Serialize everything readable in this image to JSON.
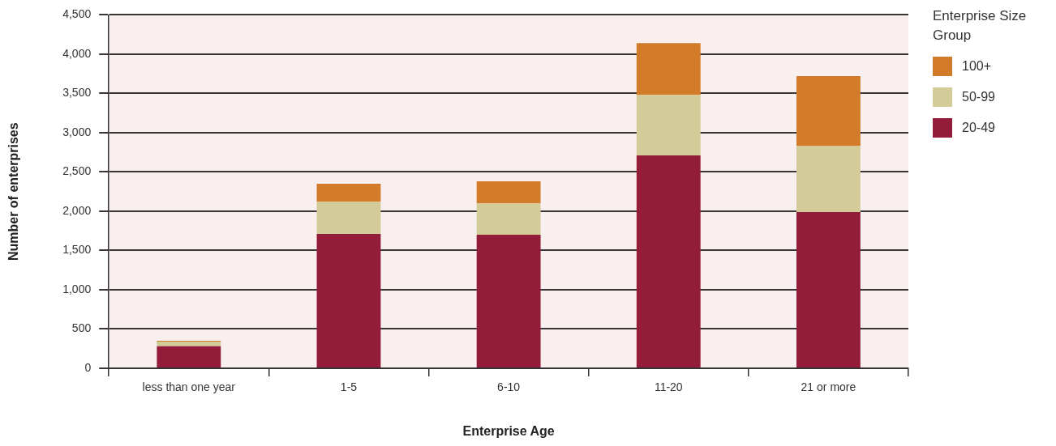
{
  "chart_data": {
    "type": "bar",
    "stacked": true,
    "xlabel": "Enterprise Age",
    "ylabel": "Number of enterprises",
    "legend_title": "Enterprise Size Group",
    "legend": "top right",
    "grid": "y",
    "categories": [
      "less than one year",
      "1-5",
      "6-10",
      "11-20",
      "21 or more"
    ],
    "ylim": [
      0,
      4500
    ],
    "yticks": [
      {
        "value": 0,
        "label": "0"
      },
      {
        "value": 500,
        "label": "500"
      },
      {
        "value": 1000,
        "label": "1,000"
      },
      {
        "value": 1500,
        "label": "1,500"
      },
      {
        "value": 2000,
        "label": "2,000"
      },
      {
        "value": 2500,
        "label": "2,500"
      },
      {
        "value": 3000,
        "label": "3,000"
      },
      {
        "value": 3500,
        "label": "3,500"
      },
      {
        "value": 4000,
        "label": "4,000"
      },
      {
        "value": 4500,
        "label": "4,500"
      }
    ],
    "series": [
      {
        "name": "20-49",
        "color": "#931c3b",
        "values": [
          280,
          1710,
          1700,
          2710,
          1990
        ]
      },
      {
        "name": "50-99",
        "color": "#d4cc98",
        "values": [
          60,
          410,
          400,
          770,
          840
        ]
      },
      {
        "name": "100+",
        "color": "#d27b29",
        "values": [
          10,
          230,
          280,
          660,
          890
        ]
      }
    ]
  }
}
